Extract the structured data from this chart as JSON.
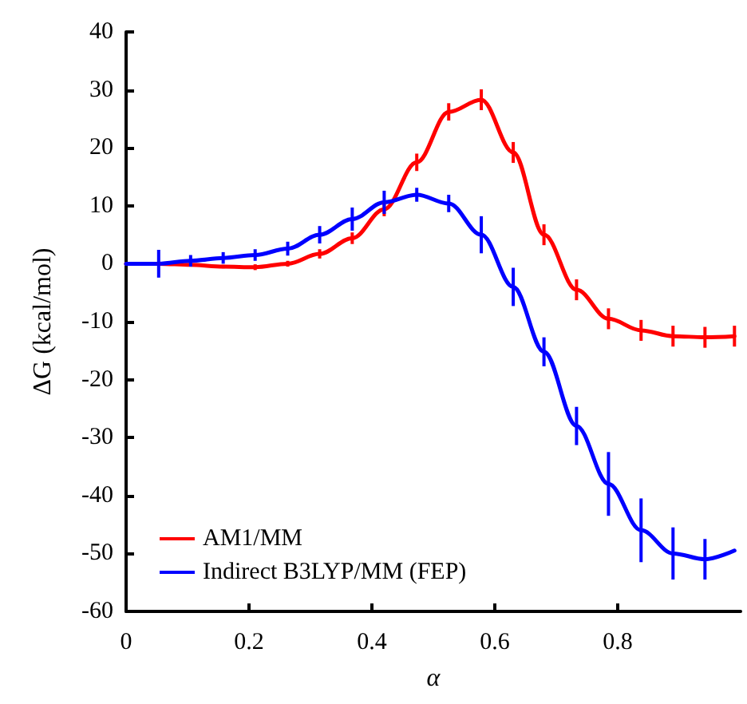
{
  "chart_data": {
    "type": "line",
    "xlabel": "α",
    "ylabel": "ΔG (kcal/mol)",
    "x": [
      0,
      0.053,
      0.105,
      0.158,
      0.21,
      0.263,
      0.315,
      0.368,
      0.42,
      0.473,
      0.525,
      0.578,
      0.63,
      0.68,
      0.733,
      0.785,
      0.838,
      0.89,
      0.942,
      0.99
    ],
    "series": [
      {
        "name": "AM1/MM",
        "color": "#ff0000",
        "values": [
          0,
          0,
          -0.2,
          -0.5,
          -0.6,
          0,
          1.7,
          4.4,
          9.4,
          17.5,
          26.2,
          28.3,
          19.2,
          5,
          -4.5,
          -9.5,
          -11.5,
          -12.5,
          -12.7,
          -12.5
        ],
        "errors": [
          null,
          0.3,
          0.3,
          0.3,
          0.5,
          0.5,
          0.8,
          1,
          1.2,
          1.5,
          1.5,
          1.8,
          1.8,
          1.8,
          1.8,
          1.8,
          1.8,
          1.8,
          1.8,
          1.8
        ]
      },
      {
        "name": "Indirect B3LYP/MM (FEP)",
        "color": "#0000ff",
        "values": [
          0,
          0,
          0.5,
          1,
          1.5,
          2.6,
          5,
          7.7,
          10.6,
          11.9,
          10.4,
          5,
          -4,
          -15.2,
          -28,
          -38,
          -46,
          -50,
          -51,
          -49.5
        ],
        "errors": [
          null,
          2.4,
          1,
          1,
          1,
          1.2,
          1.5,
          2,
          2,
          1.2,
          1.5,
          3.2,
          3.3,
          2.5,
          3.3,
          5.5,
          5.5,
          4.5,
          3.5,
          null
        ]
      }
    ],
    "xlim": [
      0,
      1
    ],
    "xticks": [
      0,
      0.2,
      0.4,
      0.6,
      0.8
    ],
    "ylim": [
      -60,
      40
    ],
    "yticks": [
      -60,
      -50,
      -40,
      -30,
      -20,
      -10,
      0,
      10,
      20,
      30,
      40
    ],
    "grid": false,
    "legend": "bottom left",
    "marker": "none",
    "line_style": "solid"
  }
}
